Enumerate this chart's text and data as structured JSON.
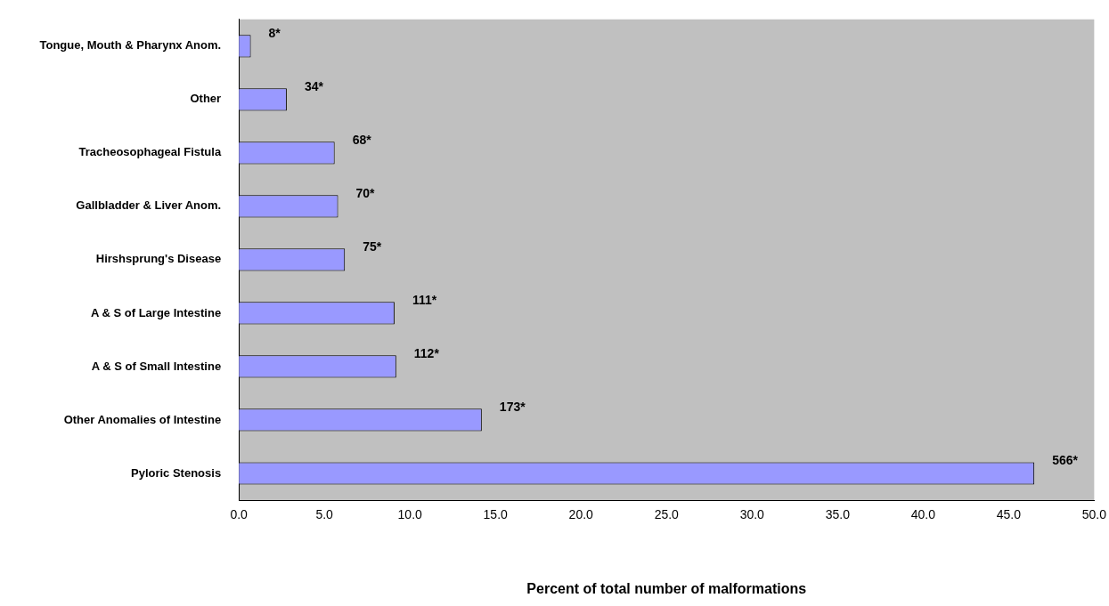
{
  "chart_data": {
    "type": "bar",
    "orientation": "horizontal",
    "xlabel": "Percent of total number of malformations",
    "categories": [
      "Tongue, Mouth & Pharynx Anom.",
      "Other",
      "Tracheosophageal Fistula",
      "Gallbladder & Liver Anom.",
      "Hirshsprung's Disease",
      "A & S of Large Intestine",
      "A & S of Small Intestine",
      "Other Anomalies of Intestine",
      "Pyloric Stenosis"
    ],
    "values": [
      0.7,
      2.8,
      5.6,
      5.8,
      6.2,
      9.1,
      9.2,
      14.2,
      46.5
    ],
    "annotations": [
      {
        "text": "8*",
        "x": 0.7,
        "y": "Tongue, Mouth & Pharynx Anom."
      },
      {
        "text": "34*",
        "x": 2.8,
        "y": "Other"
      },
      {
        "text": "68*",
        "x": 5.6,
        "y": "Tracheosophageal Fistula"
      },
      {
        "text": "70*",
        "x": 5.8,
        "y": "Gallbladder & Liver Anom."
      },
      {
        "text": "75*",
        "x": 6.2,
        "y": "Hirshsprung's Disease"
      },
      {
        "text": "111*",
        "x": 9.1,
        "y": "A & S of Large Intestine"
      },
      {
        "text": "112*",
        "x": 9.2,
        "y": "A & S of Small Intestine"
      },
      {
        "text": "173*",
        "x": 14.2,
        "y": "Other Anomalies of Intestine"
      },
      {
        "text": "566*",
        "x": 46.5,
        "y": "Pyloric Stenosis"
      }
    ],
    "color": "#9999ff",
    "xlim": [
      0,
      50
    ],
    "xticks": [
      {
        "value": 0,
        "label": "0.0"
      },
      {
        "value": 5,
        "label": "5.0"
      },
      {
        "value": 10,
        "label": "10.0"
      },
      {
        "value": 15,
        "label": "15.0"
      },
      {
        "value": 20,
        "label": "20.0"
      },
      {
        "value": 25,
        "label": "25.0"
      },
      {
        "value": 30,
        "label": "30.0"
      },
      {
        "value": 35,
        "label": "35.0"
      },
      {
        "value": 40,
        "label": "40.0"
      },
      {
        "value": 45,
        "label": "45.0"
      },
      {
        "value": 50,
        "label": "50.0"
      }
    ],
    "grid": false,
    "legend": false
  }
}
